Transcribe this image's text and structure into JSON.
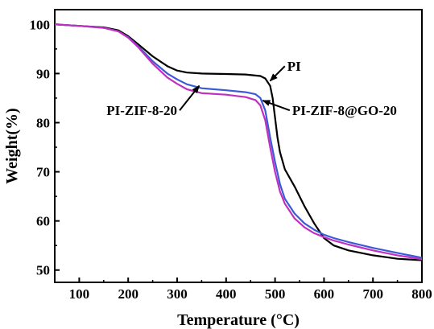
{
  "chart_data": {
    "type": "line",
    "title": "",
    "xlabel": "Temperature (°C)",
    "ylabel": "Weight(%)",
    "xlim": [
      50,
      800
    ],
    "ylim": [
      47.5,
      103
    ],
    "xticks": [
      100,
      200,
      300,
      400,
      500,
      600,
      700,
      800
    ],
    "yticks": [
      50,
      60,
      70,
      80,
      90,
      100
    ],
    "grid": false,
    "legend": "none",
    "series": [
      {
        "color": "#000000",
        "x": [
          50,
          100,
          150,
          180,
          200,
          220,
          250,
          280,
          300,
          320,
          350,
          400,
          440,
          470,
          480,
          490,
          495,
          500,
          505,
          510,
          520,
          540,
          560,
          580,
          600,
          620,
          650,
          700,
          750,
          800
        ],
        "y": [
          100,
          99.7,
          99.4,
          98.8,
          97.6,
          96.0,
          93.5,
          91.5,
          90.6,
          90.2,
          90.0,
          89.9,
          89.8,
          89.5,
          89.0,
          87.5,
          85.0,
          81.0,
          77.0,
          74.0,
          70.5,
          67.0,
          63.0,
          59.5,
          56.5,
          55.0,
          54.0,
          53.0,
          52.3,
          52.0
        ]
      },
      {
        "color": "#3b5bd6",
        "x": [
          50,
          100,
          150,
          180,
          200,
          220,
          250,
          280,
          300,
          320,
          350,
          400,
          440,
          460,
          470,
          480,
          490,
          500,
          510,
          520,
          540,
          560,
          580,
          600,
          620,
          650,
          700,
          750,
          800
        ],
        "y": [
          100,
          99.7,
          99.3,
          98.6,
          97.4,
          95.6,
          92.5,
          90.0,
          88.8,
          87.8,
          87.0,
          86.6,
          86.2,
          85.8,
          85.0,
          82.5,
          77.0,
          72.0,
          67.5,
          64.5,
          61.5,
          59.5,
          58.2,
          57.2,
          56.5,
          55.7,
          54.5,
          53.5,
          52.5
        ]
      },
      {
        "color": "#c030c0",
        "x": [
          50,
          100,
          150,
          180,
          200,
          220,
          250,
          280,
          300,
          320,
          350,
          400,
          440,
          460,
          470,
          480,
          490,
          500,
          510,
          520,
          540,
          560,
          580,
          600,
          620,
          650,
          700,
          750,
          800
        ],
        "y": [
          100,
          99.7,
          99.3,
          98.6,
          97.3,
          95.4,
          92.0,
          89.2,
          87.9,
          86.8,
          86.0,
          85.7,
          85.2,
          84.6,
          83.5,
          80.5,
          75.0,
          70.0,
          66.0,
          63.5,
          60.5,
          58.7,
          57.5,
          56.7,
          56.0,
          55.2,
          54.0,
          53.0,
          52.2
        ]
      }
    ],
    "annotations": [
      {
        "text": "PI",
        "tip": [
          490,
          88.5
        ],
        "label_at": [
          520,
          91.5
        ]
      },
      {
        "text": "PI-ZIF-8-20",
        "tip": [
          345,
          87.5
        ],
        "label_at": [
          305,
          82.5
        ]
      },
      {
        "text": "PI-ZIF-8@GO-20",
        "tip": [
          475,
          84.5
        ],
        "label_at": [
          530,
          82.5
        ]
      }
    ]
  }
}
